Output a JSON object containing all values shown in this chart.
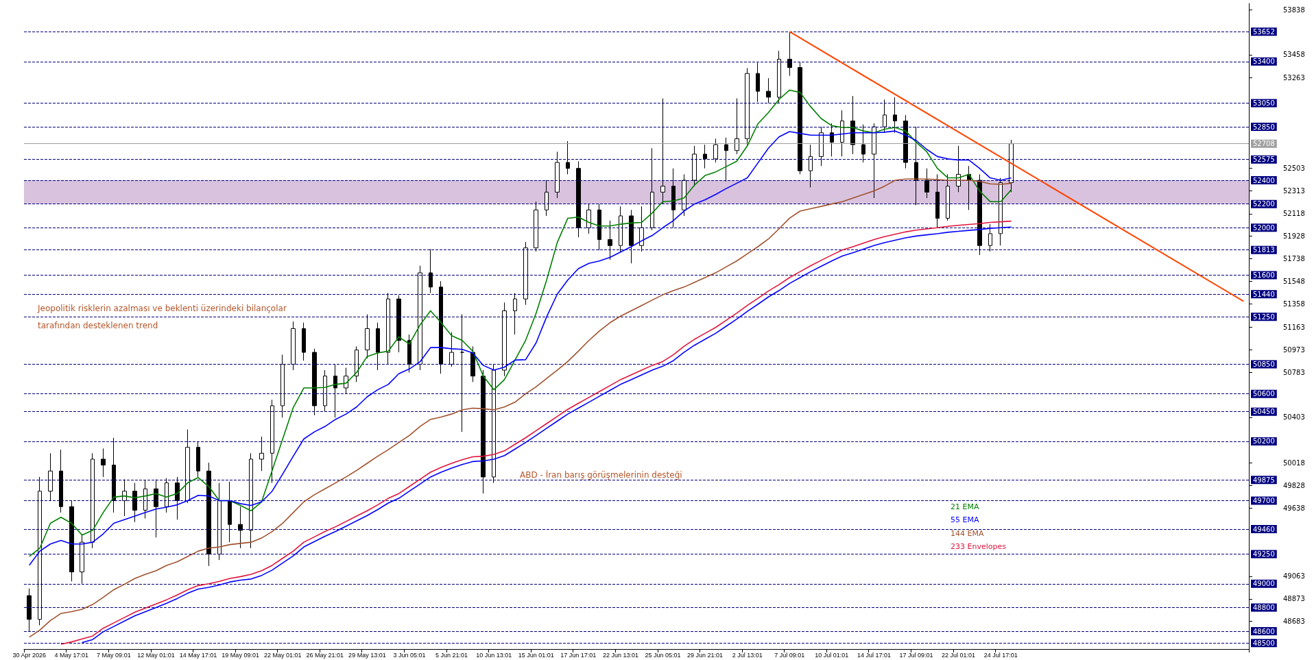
{
  "chart_data": {
    "type": "candlestick",
    "categories": [
      "30 Apr 2026",
      null,
      null,
      null,
      "4 May 17:01",
      null,
      null,
      null,
      "7 May 09:01",
      null,
      null,
      null,
      "12 May 01:01",
      null,
      null,
      null,
      "14 May 17:01",
      null,
      null,
      null,
      "19 May 09:01",
      null,
      null,
      null,
      "22 May 01:01",
      null,
      null,
      null,
      "26 May 21:01",
      null,
      null,
      null,
      "29 May 13:01",
      null,
      null,
      null,
      "3 Jun 05:01",
      null,
      null,
      null,
      "5 Jun 21:01",
      null,
      null,
      null,
      "10 Jun 13:01",
      null,
      null,
      null,
      "15 Jun 01:01",
      null,
      null,
      null,
      "17 Jun 17:01",
      null,
      null,
      null,
      "22 Jun 13:01",
      null,
      null,
      null,
      "25 Jun 05:01",
      null,
      null,
      null,
      "29 Jun 21:01",
      null,
      null,
      null,
      "2 Jul 13:01",
      null,
      null,
      null,
      "7 Jul 09:01",
      null,
      null,
      null,
      "10 Jul 01:01",
      null,
      null,
      null,
      "14 Jul 17:01",
      null,
      null,
      null,
      "17 Jul 09:01",
      null,
      null,
      null,
      "22 Jul 01:01",
      null,
      null,
      null,
      "24 Jul 17:01",
      null,
      null,
      null,
      null,
      null,
      null,
      null,
      null,
      null,
      null,
      null,
      null,
      null,
      null,
      null,
      null,
      null,
      null,
      null,
      null,
      null,
      null,
      null
    ],
    "color": "#000000",
    "ohlc": [
      [
        48900,
        48960,
        48600,
        48700
      ],
      [
        48700,
        49900,
        48650,
        49780
      ],
      [
        49780,
        50100,
        49700,
        49950
      ],
      [
        49950,
        50130,
        49600,
        49650
      ],
      [
        49650,
        49700,
        49020,
        49100
      ],
      [
        49100,
        49420,
        49000,
        49350
      ],
      [
        49350,
        50100,
        49300,
        50050
      ],
      [
        50050,
        50140,
        49900,
        50000
      ],
      [
        50000,
        50230,
        49600,
        49700
      ],
      [
        49700,
        49880,
        49570,
        49780
      ],
      [
        49780,
        49850,
        49520,
        49620
      ],
      [
        49620,
        49870,
        49550,
        49800
      ],
      [
        49800,
        49880,
        49390,
        49650
      ],
      [
        49650,
        49890,
        49600,
        49850
      ],
      [
        49850,
        49900,
        49540,
        49700
      ],
      [
        49700,
        50300,
        49680,
        50150
      ],
      [
        50150,
        50200,
        49900,
        49950
      ],
      [
        49950,
        50020,
        49150,
        49250
      ],
      [
        49250,
        49850,
        49200,
        49700
      ],
      [
        49700,
        49860,
        49350,
        49500
      ],
      [
        49500,
        49650,
        49300,
        49450
      ],
      [
        49450,
        50100,
        49300,
        50050
      ],
      [
        50050,
        50240,
        49950,
        50100
      ],
      [
        50100,
        50550,
        49850,
        50500
      ],
      [
        50500,
        50930,
        50400,
        50850
      ],
      [
        50850,
        51210,
        50800,
        51150
      ],
      [
        51150,
        51200,
        50880,
        50950
      ],
      [
        50950,
        50980,
        50420,
        50500
      ],
      [
        50500,
        50800,
        50450,
        50750
      ],
      [
        50750,
        50850,
        50400,
        50650
      ],
      [
        50650,
        50820,
        50600,
        50750
      ],
      [
        50750,
        51000,
        50700,
        50970
      ],
      [
        50970,
        51270,
        50900,
        51150
      ],
      [
        51150,
        51200,
        50800,
        50950
      ],
      [
        50950,
        51450,
        50850,
        51400
      ],
      [
        51400,
        51430,
        50950,
        51050
      ],
      [
        51050,
        51100,
        50780,
        50850
      ],
      [
        50850,
        51680,
        50800,
        51620
      ],
      [
        51620,
        51820,
        51450,
        51500
      ],
      [
        51500,
        51550,
        50770,
        50850
      ],
      [
        50850,
        51120,
        50830,
        50950
      ],
      [
        50950,
        51270,
        50280,
        50950
      ],
      [
        50950,
        51000,
        50700,
        50750
      ],
      [
        50750,
        50800,
        49760,
        49900
      ],
      [
        49900,
        50850,
        49850,
        50800
      ],
      [
        50800,
        51370,
        50750,
        51300
      ],
      [
        51300,
        51450,
        51100,
        51400
      ],
      [
        51400,
        51880,
        51350,
        51830
      ],
      [
        51830,
        52220,
        51800,
        52150
      ],
      [
        52150,
        52400,
        52100,
        52300
      ],
      [
        52300,
        52640,
        52250,
        52550
      ],
      [
        52550,
        52730,
        52450,
        52500
      ],
      [
        52500,
        52560,
        51920,
        52000
      ],
      [
        52000,
        52200,
        51950,
        52150
      ],
      [
        52150,
        52200,
        51810,
        51900
      ],
      [
        51900,
        52060,
        51730,
        51850
      ],
      [
        51850,
        52180,
        51800,
        52100
      ],
      [
        52100,
        52150,
        51700,
        51850
      ],
      [
        51850,
        52180,
        51800,
        52000
      ],
      [
        52000,
        52670,
        51980,
        52300
      ],
      [
        52300,
        53090,
        52200,
        52350
      ],
      [
        52350,
        52500,
        52000,
        52150
      ],
      [
        52150,
        52450,
        52100,
        52400
      ],
      [
        52400,
        52690,
        52350,
        52620
      ],
      [
        52620,
        52700,
        52500,
        52580
      ],
      [
        52580,
        52750,
        52550,
        52700
      ],
      [
        52700,
        52760,
        52390,
        52650
      ],
      [
        52650,
        53090,
        52620,
        52750
      ],
      [
        52750,
        53345,
        52700,
        53300
      ],
      [
        53300,
        53390,
        53060,
        53150
      ],
      [
        53150,
        53260,
        53050,
        53100
      ],
      [
        53100,
        53490,
        53050,
        53420
      ],
      [
        53420,
        53652,
        53280,
        53350
      ],
      [
        53350,
        53400,
        52450,
        52480
      ],
      [
        52480,
        52700,
        52340,
        52600
      ],
      [
        52600,
        52850,
        52520,
        52800
      ],
      [
        52800,
        52880,
        52600,
        52720
      ],
      [
        52720,
        52990,
        52600,
        52900
      ],
      [
        52900,
        53110,
        52620,
        52700
      ],
      [
        52700,
        52870,
        52550,
        52620
      ],
      [
        52620,
        52880,
        52250,
        52850
      ],
      [
        52850,
        53080,
        52800,
        52950
      ],
      [
        52950,
        53100,
        52800,
        52900
      ],
      [
        52900,
        52950,
        52500,
        52550
      ],
      [
        52550,
        52850,
        52190,
        52400
      ],
      [
        52400,
        52500,
        52250,
        52300
      ],
      [
        52300,
        52450,
        52000,
        52080
      ],
      [
        52080,
        52450,
        52060,
        52350
      ],
      [
        52350,
        52690,
        52300,
        52450
      ],
      [
        52450,
        52520,
        52150,
        52400
      ],
      [
        52400,
        52450,
        51770,
        51850
      ],
      [
        51850,
        52030,
        51800,
        51950
      ],
      [
        51950,
        52420,
        51850,
        52380
      ],
      [
        52380,
        52740,
        52300,
        52708
      ],
      null,
      null,
      null,
      null,
      null,
      null,
      null,
      null,
      null,
      null,
      null,
      null,
      null,
      null,
      null,
      null,
      null,
      null,
      null,
      null,
      null,
      null
    ],
    "series": [
      {
        "type": "line",
        "name": "21 EMA",
        "color": "#008000",
        "values": [
          49230,
          49300,
          49510,
          49560,
          49510,
          49410,
          49450,
          49600,
          49730,
          49740,
          49725,
          49740,
          49760,
          49730,
          49760,
          49850,
          49895,
          49820,
          49700,
          49700,
          49660,
          49615,
          49690,
          49955,
          50220,
          50485,
          50650,
          50650,
          50655,
          50680,
          50690,
          50780,
          50915,
          50945,
          50960,
          51080,
          51020,
          51180,
          51300,
          51200,
          51090,
          51050,
          50960,
          50750,
          50635,
          50720,
          50885,
          51050,
          51280,
          51560,
          51875,
          52080,
          52090,
          52045,
          52015,
          52015,
          52030,
          52040,
          52045,
          52125,
          52220,
          52225,
          52250,
          52360,
          52440,
          52470,
          52515,
          52560,
          52690,
          52875,
          52970,
          53080,
          53160,
          53140,
          53020,
          52920,
          52860,
          52845,
          52845,
          52815,
          52800,
          52830,
          52845,
          52815,
          52720,
          52640,
          52500,
          52420,
          52420,
          52450,
          52310,
          52220,
          52220,
          52320,
          null,
          null,
          null,
          null,
          null,
          null,
          null,
          null,
          null,
          null,
          null,
          null,
          null,
          null,
          null,
          null,
          null,
          null,
          null,
          null,
          null,
          null
        ]
      },
      {
        "type": "line",
        "name": "55 EMA",
        "color": "#0000ff",
        "values": [
          49156,
          49275,
          49335,
          49365,
          49335,
          49335,
          49350,
          49420,
          49510,
          49540,
          49570,
          49600,
          49630,
          49645,
          49665,
          49700,
          49745,
          49740,
          49700,
          49700,
          49675,
          49660,
          49690,
          49780,
          49925,
          50075,
          50220,
          50280,
          50325,
          50385,
          50430,
          50490,
          50575,
          50635,
          50680,
          50770,
          50810,
          50870,
          50990,
          50990,
          50980,
          50975,
          50945,
          50840,
          50800,
          50825,
          50885,
          50888,
          51030,
          51250,
          51440,
          51560,
          51655,
          51700,
          51720,
          51750,
          51795,
          51840,
          51890,
          51935,
          52000,
          52060,
          52140,
          52200,
          52235,
          52280,
          52330,
          52375,
          52420,
          52545,
          52670,
          52765,
          52810,
          52795,
          52780,
          52780,
          52780,
          52790,
          52800,
          52800,
          52800,
          52805,
          52815,
          52780,
          52735,
          52660,
          52600,
          52580,
          52570,
          52570,
          52500,
          52420,
          52400,
          52420,
          null,
          null,
          null,
          null,
          null,
          null,
          null,
          null,
          null,
          null,
          null,
          null,
          null,
          null,
          null,
          null,
          null,
          null,
          null,
          null,
          null,
          null
        ]
      },
      {
        "type": "line",
        "name": "144 EMA",
        "color": "#a0522d",
        "values": [
          48550,
          48610,
          48690,
          48750,
          48765,
          48785,
          48825,
          48885,
          48950,
          48995,
          49045,
          49080,
          49110,
          49155,
          49185,
          49230,
          49275,
          49300,
          49310,
          49330,
          49340,
          49350,
          49385,
          49440,
          49510,
          49600,
          49690,
          49750,
          49800,
          49850,
          49900,
          49955,
          50015,
          50075,
          50130,
          50190,
          50250,
          50325,
          50385,
          50405,
          50430,
          50465,
          50480,
          50475,
          50465,
          50490,
          50530,
          50600,
          50660,
          50730,
          50800,
          50873,
          50960,
          51050,
          51130,
          51200,
          51255,
          51300,
          51345,
          51390,
          51435,
          51470,
          51500,
          51540,
          51580,
          51620,
          51670,
          51720,
          51780,
          51840,
          51905,
          51990,
          52080,
          52140,
          52160,
          52180,
          52200,
          52220,
          52250,
          52280,
          52310,
          52350,
          52400,
          52410,
          52410,
          52410,
          52405,
          52400,
          52400,
          52400,
          52390,
          52370,
          52365,
          52375,
          null,
          null,
          null,
          null,
          null,
          null,
          null,
          null,
          null,
          null,
          null,
          null,
          null,
          null,
          null,
          null,
          null,
          null,
          null,
          null,
          null,
          null
        ]
      },
      {
        "type": "line",
        "name": "233 Envelopes",
        "color": "#e0143c",
        "values": [
          null,
          null,
          null,
          48490,
          48510,
          48535,
          48560,
          48625,
          48670,
          48715,
          48760,
          48795,
          48830,
          48865,
          48905,
          48950,
          48985,
          49000,
          49020,
          49045,
          49060,
          49080,
          49110,
          49155,
          49215,
          49275,
          49350,
          49395,
          49440,
          49480,
          49525,
          49570,
          49615,
          49665,
          49720,
          49760,
          49820,
          49880,
          49940,
          49980,
          50015,
          50045,
          50070,
          50075,
          50090,
          50120,
          50175,
          50230,
          50290,
          50350,
          50410,
          50470,
          50520,
          50570,
          50620,
          50670,
          50720,
          50760,
          50800,
          50840,
          50873,
          50930,
          51000,
          51060,
          51110,
          51160,
          51220,
          51280,
          51345,
          51405,
          51467,
          51520,
          51580,
          51630,
          51680,
          51725,
          51770,
          51812,
          51840,
          51870,
          51900,
          51925,
          51945,
          51965,
          51980,
          51990,
          52000,
          52012,
          52020,
          52028,
          52035,
          52045,
          52050,
          52056,
          null,
          null,
          null,
          null,
          null,
          null,
          null,
          null,
          null,
          null,
          null,
          null,
          null,
          null,
          null,
          null,
          null,
          null,
          null,
          null,
          null,
          null
        ]
      },
      {
        "type": "line",
        "color": "#0000ff",
        "values": [
          null,
          null,
          null,
          null,
          null,
          48505,
          48530,
          48595,
          48640,
          48685,
          48730,
          48765,
          48800,
          48835,
          48875,
          48920,
          48955,
          48970,
          48990,
          49015,
          49030,
          49040,
          49070,
          49115,
          49175,
          49235,
          49310,
          49355,
          49400,
          49440,
          49485,
          49530,
          49575,
          49625,
          49680,
          49720,
          49780,
          49840,
          49900,
          49940,
          49975,
          50005,
          50030,
          50035,
          50050,
          50080,
          50135,
          50190,
          50250,
          50310,
          50370,
          50430,
          50480,
          50530,
          50580,
          50630,
          50680,
          50720,
          50760,
          50800,
          50833,
          50880,
          50950,
          51010,
          51060,
          51110,
          51170,
          51230,
          51295,
          51355,
          51417,
          51470,
          51530,
          51580,
          51630,
          51675,
          51720,
          51762,
          51790,
          51820,
          51850,
          51875,
          51895,
          51915,
          51930,
          51940,
          51950,
          51962,
          51970,
          51978,
          51985,
          51995,
          52000,
          52006,
          null,
          null,
          null,
          null,
          null,
          null,
          null,
          null,
          null,
          null,
          null,
          null,
          null,
          null,
          null,
          null,
          null,
          null,
          null,
          null,
          null,
          null
        ]
      },
      {
        "type": "line",
        "color": "#ff4500",
        "values": [
          null,
          null,
          null,
          null,
          null,
          null,
          null,
          null,
          null,
          null,
          null,
          null,
          null,
          null,
          null,
          null,
          null,
          null,
          null,
          null,
          null,
          null,
          null,
          null,
          null,
          null,
          null,
          null,
          null,
          null,
          null,
          null,
          null,
          null,
          null,
          null,
          null,
          null,
          null,
          null,
          null,
          null,
          null,
          null,
          null,
          null,
          null,
          null,
          null,
          null,
          null,
          null,
          null,
          null,
          null,
          null,
          null,
          null,
          null,
          null,
          null,
          null,
          null,
          null,
          null,
          null,
          null,
          null,
          null,
          null,
          null,
          null,
          53652,
          null,
          null,
          null,
          null,
          null,
          null,
          null,
          null,
          null,
          null,
          null,
          null,
          null,
          null,
          null,
          null,
          null,
          null,
          null,
          null,
          null,
          null,
          null,
          null,
          null,
          null,
          null,
          null,
          null,
          null,
          null,
          null,
          null,
          null,
          null,
          null,
          null,
          null,
          null,
          null,
          null,
          null,
          51380
        ]
      }
    ],
    "marker": "none",
    "legend": "bottom right",
    "ylim": [
      48450,
      53890
    ],
    "yticks": [
      53838,
      53458,
      53263,
      52503,
      52313,
      52118,
      51928,
      51738,
      51548,
      51358,
      51163,
      50973,
      50783,
      50403,
      50018,
      49828,
      49638,
      49063,
      48873,
      48683
    ],
    "ref_lines": [
      {
        "axis": "y",
        "value": 53652,
        "label": "53652",
        "color": "#000080",
        "line_style": "dashed"
      },
      {
        "axis": "y",
        "value": 53400,
        "label": "53400",
        "color": "#000080",
        "line_style": "dashed"
      },
      {
        "axis": "y",
        "value": 53050,
        "label": "53050",
        "color": "#000080",
        "line_style": "dashed"
      },
      {
        "axis": "y",
        "value": 52850,
        "label": "52850",
        "color": "#000080",
        "line_style": "dashed"
      },
      {
        "axis": "y",
        "value": 52708,
        "label": "52708",
        "color": "#a0a0a0",
        "line_style": "solid"
      },
      {
        "axis": "y",
        "value": 52575,
        "label": "52575",
        "color": "#000080",
        "line_style": "dashed"
      },
      {
        "axis": "y",
        "value": 52400,
        "label": "52400",
        "color": "#000080",
        "line_style": "dashed"
      },
      {
        "axis": "y",
        "value": 52200,
        "label": "52200",
        "color": "#000080",
        "line_style": "dashed"
      },
      {
        "axis": "y",
        "value": 52000,
        "label": "52000",
        "color": "#000080",
        "line_style": "dashed"
      },
      {
        "axis": "y",
        "value": 51813,
        "label": "51813",
        "color": "#000080",
        "line_style": "dashed"
      },
      {
        "axis": "y",
        "value": 51600,
        "label": "51600",
        "color": "#000080",
        "line_style": "dashed"
      },
      {
        "axis": "y",
        "value": 51440,
        "label": "51440",
        "color": "#000080",
        "line_style": "dashed"
      },
      {
        "axis": "y",
        "value": 51250,
        "label": "51250",
        "color": "#000080",
        "line_style": "dashed"
      },
      {
        "axis": "y",
        "value": 50850,
        "label": "50850",
        "color": "#000080",
        "line_style": "dashed"
      },
      {
        "axis": "y",
        "value": 50600,
        "label": "50600",
        "color": "#000080",
        "line_style": "dashed"
      },
      {
        "axis": "y",
        "value": 50450,
        "label": "50450",
        "color": "#000080",
        "line_style": "dashed"
      },
      {
        "axis": "y",
        "value": 50200,
        "label": "50200",
        "color": "#000080",
        "line_style": "dashed"
      },
      {
        "axis": "y",
        "value": 49875,
        "label": "49875",
        "color": "#000080",
        "line_style": "dashed"
      },
      {
        "axis": "y",
        "value": 49700,
        "label": "49700",
        "color": "#000080",
        "line_style": "dashed"
      },
      {
        "axis": "y",
        "value": 49460,
        "label": "49460",
        "color": "#000080",
        "line_style": "dashed"
      },
      {
        "axis": "y",
        "value": 49250,
        "label": "49250",
        "color": "#000080",
        "line_style": "dashed"
      },
      {
        "axis": "y",
        "value": 49000,
        "label": "49000",
        "color": "#000080",
        "line_style": "dashed"
      },
      {
        "axis": "y",
        "value": 48800,
        "label": "48800",
        "color": "#000080",
        "line_style": "dashed"
      },
      {
        "axis": "y",
        "value": 48600,
        "label": "48600",
        "color": "#000080",
        "line_style": "dashed"
      },
      {
        "axis": "y",
        "value": 48500,
        "label": "48500",
        "color": "#000080",
        "line_style": "dashed"
      }
    ],
    "bands": [
      {
        "axis": "y",
        "from": 52200,
        "to": 52400,
        "color": "#c8a8d0"
      }
    ],
    "annotations": [
      "Jeopolitik risklerin azalması ve beklenti üzerindeki bilançolar\ntarafından desteklenen trend",
      "ABD - İran barış görüşmelerinin desteği"
    ]
  }
}
